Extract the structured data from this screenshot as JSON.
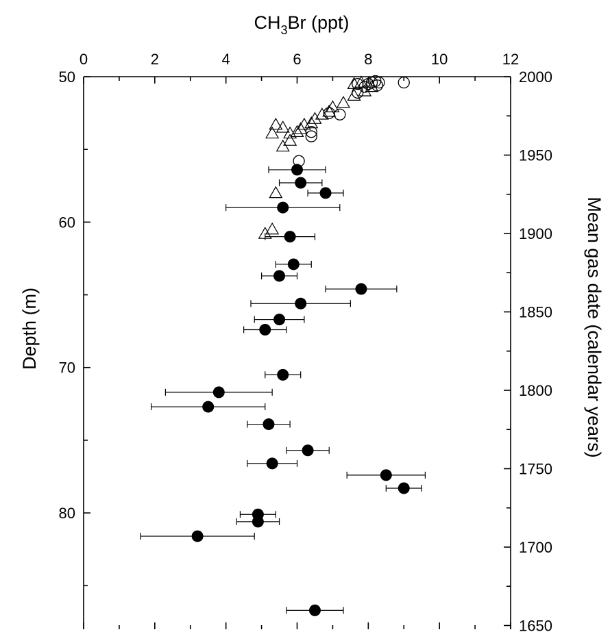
{
  "chart_data": {
    "type": "scatter",
    "title": "",
    "x_axis": {
      "label_prefix": "CH",
      "label_sub": "3",
      "label_suffix": "Br (ppt)",
      "range": [
        0,
        12
      ],
      "ticks": [
        "0",
        "2",
        "4",
        "6",
        "8",
        "10",
        "12"
      ],
      "position": "top"
    },
    "y_axis_left": {
      "label": "Depth (m)",
      "range": [
        50,
        88
      ],
      "inverted": true,
      "ticks": [
        "50",
        "60",
        "70",
        "80"
      ]
    },
    "y_axis_right": {
      "label": "Mean gas date (calendar years)",
      "ticks": [
        "2000",
        "1950",
        "1900",
        "1850",
        "1800",
        "1750",
        "1700",
        "1650"
      ]
    },
    "grid": false,
    "legend": "none",
    "series": [
      {
        "marker": "filled-circle",
        "points": [
          {
            "x": 6.0,
            "y": 56.4,
            "err": 0.8
          },
          {
            "x": 6.1,
            "y": 57.3,
            "err": 0.6
          },
          {
            "x": 6.8,
            "y": 58.0,
            "err": 0.5
          },
          {
            "x": 5.6,
            "y": 59.0,
            "err": 1.6
          },
          {
            "x": 5.8,
            "y": 61.0,
            "err": 0.7
          },
          {
            "x": 5.9,
            "y": 62.9,
            "err": 0.5
          },
          {
            "x": 5.5,
            "y": 63.7,
            "err": 0.5
          },
          {
            "x": 7.8,
            "y": 64.6,
            "err": 1.0
          },
          {
            "x": 6.1,
            "y": 65.6,
            "err": 1.4
          },
          {
            "x": 5.5,
            "y": 66.7,
            "err": 0.7
          },
          {
            "x": 5.1,
            "y": 67.4,
            "err": 0.6
          },
          {
            "x": 5.6,
            "y": 70.5,
            "err": 0.5
          },
          {
            "x": 3.8,
            "y": 71.7,
            "err": 1.5
          },
          {
            "x": 3.5,
            "y": 72.7,
            "err": 1.6
          },
          {
            "x": 5.2,
            "y": 73.9,
            "err": 0.6
          },
          {
            "x": 6.3,
            "y": 75.7,
            "err": 0.6
          },
          {
            "x": 5.3,
            "y": 76.6,
            "err": 0.7
          },
          {
            "x": 8.5,
            "y": 77.4,
            "err": 1.1
          },
          {
            "x": 9.0,
            "y": 78.3,
            "err": 0.5
          },
          {
            "x": 4.9,
            "y": 80.1,
            "err": 0.5
          },
          {
            "x": 4.9,
            "y": 80.6,
            "err": 0.6
          },
          {
            "x": 3.2,
            "y": 81.6,
            "err": 1.6
          },
          {
            "x": 6.5,
            "y": 86.7,
            "err": 0.8
          }
        ]
      },
      {
        "marker": "open-circle",
        "points": [
          {
            "x": 9.0,
            "y": 50.4
          },
          {
            "x": 8.3,
            "y": 50.4
          },
          {
            "x": 8.2,
            "y": 50.3
          },
          {
            "x": 8.1,
            "y": 50.4
          },
          {
            "x": 8.0,
            "y": 50.5
          },
          {
            "x": 8.25,
            "y": 50.6
          },
          {
            "x": 7.7,
            "y": 50.5
          },
          {
            "x": 7.9,
            "y": 50.7
          },
          {
            "x": 7.7,
            "y": 51.1
          },
          {
            "x": 7.2,
            "y": 52.6
          },
          {
            "x": 6.9,
            "y": 52.5
          },
          {
            "x": 6.4,
            "y": 53.8
          },
          {
            "x": 6.4,
            "y": 54.1
          },
          {
            "x": 6.05,
            "y": 55.8
          }
        ]
      },
      {
        "marker": "open-triangle",
        "points": [
          {
            "x": 7.6,
            "y": 50.5
          },
          {
            "x": 7.8,
            "y": 50.4
          },
          {
            "x": 8.1,
            "y": 50.7
          },
          {
            "x": 7.9,
            "y": 51.0
          },
          {
            "x": 7.6,
            "y": 51.3
          },
          {
            "x": 7.3,
            "y": 51.8
          },
          {
            "x": 7.0,
            "y": 52.1
          },
          {
            "x": 6.9,
            "y": 52.4
          },
          {
            "x": 6.7,
            "y": 52.6
          },
          {
            "x": 6.5,
            "y": 52.9
          },
          {
            "x": 6.4,
            "y": 53.2
          },
          {
            "x": 6.2,
            "y": 53.3
          },
          {
            "x": 6.1,
            "y": 53.6
          },
          {
            "x": 6.0,
            "y": 53.8
          },
          {
            "x": 5.8,
            "y": 53.9
          },
          {
            "x": 5.6,
            "y": 53.5
          },
          {
            "x": 5.4,
            "y": 53.3
          },
          {
            "x": 5.3,
            "y": 53.9
          },
          {
            "x": 5.8,
            "y": 54.4
          },
          {
            "x": 5.6,
            "y": 54.8
          },
          {
            "x": 5.4,
            "y": 58.0
          },
          {
            "x": 5.3,
            "y": 60.5
          },
          {
            "x": 5.1,
            "y": 60.8
          }
        ]
      }
    ]
  }
}
